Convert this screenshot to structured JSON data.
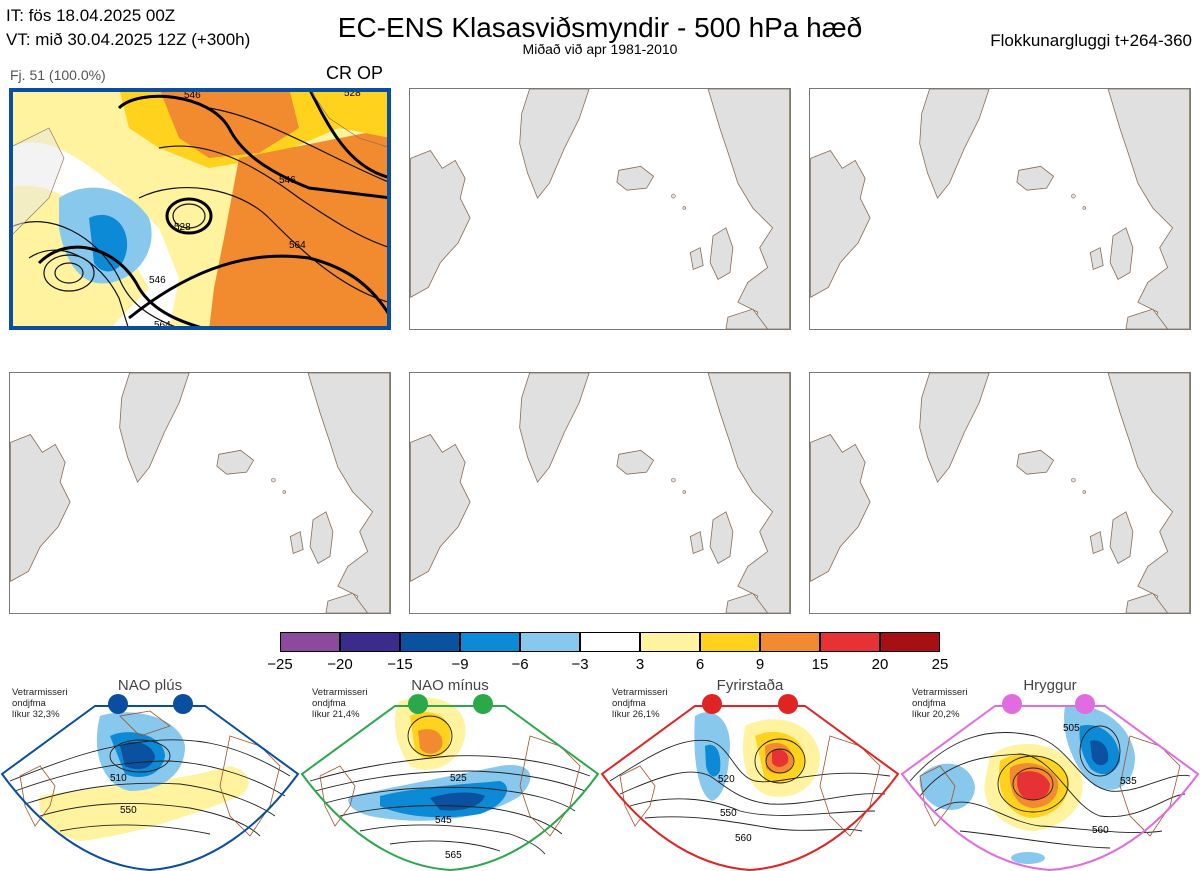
{
  "header": {
    "issue_time": "IT: fös 18.04.2025 00Z",
    "valid_time": "VT: mið 30.04.2025 12Z  (+300h)",
    "title": "EC-ENS Klasasviðsmyndir - 500 hPa hæð",
    "subtitle": "Miðað við apr 1981-2010",
    "cluster_window": "Flokkunargluggi t+264-360"
  },
  "cluster1": {
    "label": "Fj. 51 (100.0%)",
    "tag": "CR OP",
    "contour_labels": [
      "546",
      "528",
      "546",
      "564",
      "546",
      "564",
      "528"
    ]
  },
  "colorbar": {
    "ticks": [
      "−25",
      "−20",
      "−15",
      "−9",
      "−6",
      "−3",
      "3",
      "6",
      "9",
      "15",
      "20",
      "25"
    ],
    "colors": [
      "#8c4a9c",
      "#3b2c8c",
      "#0a52a0",
      "#0d8ad6",
      "#88c8ec",
      "#ffffff",
      "#fff3a0",
      "#ffd21e",
      "#f28a30",
      "#e63234",
      "#a60f14"
    ]
  },
  "regimes": [
    {
      "name": "NAO plús",
      "season": "Vetrarmisseri",
      "kind": "ondjfma",
      "prob": "líkur 32,3%",
      "color": "#0a4ea0",
      "labels": [
        "510",
        "550"
      ]
    },
    {
      "name": "NAO mínus",
      "season": "Vetrarmisseri",
      "kind": "ondjfma",
      "prob": "líkur 21,4%",
      "color": "#2aa84a",
      "labels": [
        "525",
        "545",
        "565"
      ]
    },
    {
      "name": "Fyrirstaða",
      "season": "Vetrarmisseri",
      "kind": "ondjfma",
      "prob": "líkur 26,1%",
      "color": "#e02424",
      "labels": [
        "520",
        "550",
        "560"
      ]
    },
    {
      "name": "Hryggur",
      "season": "Vetrarmisseri",
      "kind": "ondjfma",
      "prob": "líkur 20,2%",
      "color": "#e06ce0",
      "labels": [
        "505",
        "535",
        "560"
      ]
    }
  ]
}
